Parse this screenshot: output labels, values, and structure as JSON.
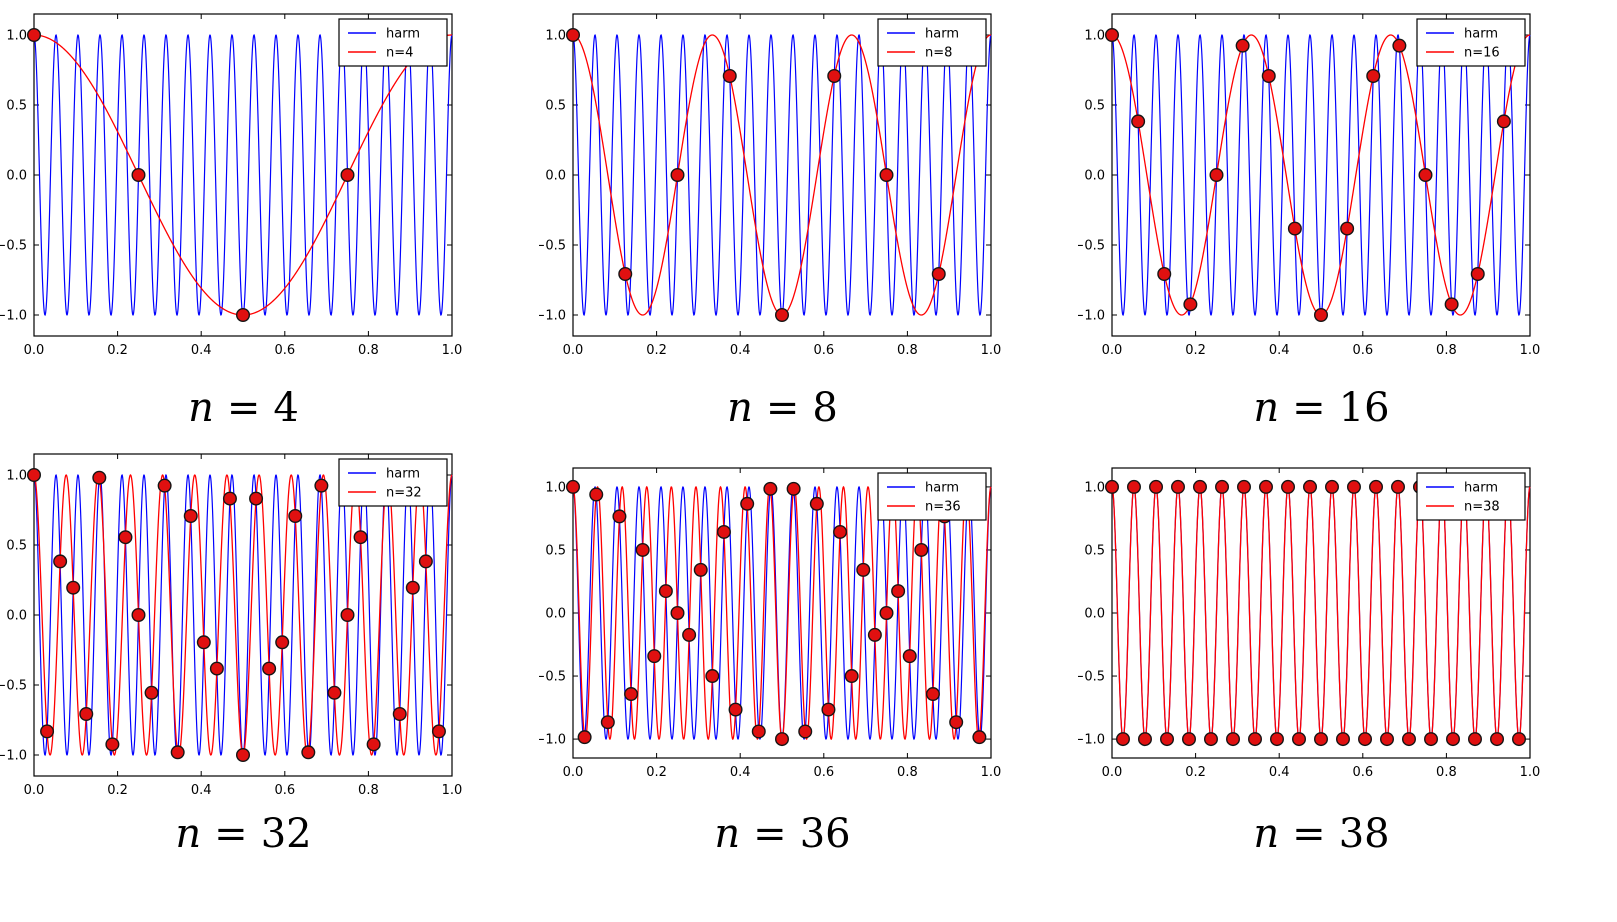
{
  "figure": {
    "description": "Aliasing demonstration: harmonic cos(2*pi*19*x) sampled with n points; red curve is the aliased reconstruction",
    "background": "#ffffff",
    "rows": 2,
    "cols": 3
  },
  "colors": {
    "harmonic": "#0000ff",
    "alias": "#ff0000",
    "marker_fill": "#e01010",
    "marker_edge": "#151515",
    "frame": "#000000",
    "plot_background": "#ffffff",
    "legend_background": "#ffffff"
  },
  "axes": {
    "xlim": [
      0,
      1
    ],
    "ylim": [
      -1.15,
      1.15
    ],
    "x_tick_values": [
      0.0,
      0.2,
      0.4,
      0.6,
      0.8,
      1.0
    ],
    "x_tick_labels": [
      "0.0",
      "0.2",
      "0.4",
      "0.6",
      "0.8",
      "1.0"
    ],
    "y_tick_values": [
      1.0,
      0.5,
      0.0,
      -0.5,
      -1.0
    ],
    "y_tick_labels": [
      "1.0",
      "0.5",
      "0.0",
      "−0.5",
      "−1.0"
    ],
    "grid": false,
    "tick_direction": "in",
    "legend_position": "upper right"
  },
  "chart_data": [
    {
      "type": "line",
      "caption": {
        "var": "n",
        "eq": "=",
        "value": "4"
      },
      "n_samples": 4,
      "legend": [
        "harm",
        "n=4"
      ],
      "series": [
        {
          "name": "harm",
          "freq": 19,
          "formula": "cos(2*pi*19*x)",
          "color": "#0000ff"
        },
        {
          "name": "n=4",
          "freq": 1,
          "formula": "cos(2*pi*1*x)",
          "color": "#ff0000"
        }
      ],
      "samples": [
        [
          0,
          1
        ],
        [
          0.25,
          0
        ],
        [
          0.5,
          -1
        ],
        [
          0.75,
          0
        ]
      ]
    },
    {
      "type": "line",
      "caption": {
        "var": "n",
        "eq": "=",
        "value": "8"
      },
      "n_samples": 8,
      "legend": [
        "harm",
        "n=8"
      ],
      "series": [
        {
          "name": "harm",
          "freq": 19,
          "formula": "cos(2*pi*19*x)",
          "color": "#0000ff"
        },
        {
          "name": "n=8",
          "freq": 3,
          "formula": "cos(2*pi*3*x)",
          "color": "#ff0000"
        }
      ],
      "samples": [
        [
          0,
          1
        ],
        [
          0.125,
          -0.7071
        ],
        [
          0.25,
          0
        ],
        [
          0.375,
          0.7071
        ],
        [
          0.5,
          -1
        ],
        [
          0.625,
          0.7071
        ],
        [
          0.75,
          0
        ],
        [
          0.875,
          -0.7071
        ]
      ]
    },
    {
      "type": "line",
      "caption": {
        "var": "n",
        "eq": "=",
        "value": "16"
      },
      "n_samples": 16,
      "legend": [
        "harm",
        "n=16"
      ],
      "series": [
        {
          "name": "harm",
          "freq": 19,
          "formula": "cos(2*pi*19*x)",
          "color": "#0000ff"
        },
        {
          "name": "n=16",
          "freq": 3,
          "formula": "cos(2*pi*3*x)",
          "color": "#ff0000"
        }
      ],
      "samples": [
        [
          0,
          1
        ],
        [
          0.0625,
          0.3827
        ],
        [
          0.125,
          -0.7071
        ],
        [
          0.1875,
          -0.9239
        ],
        [
          0.25,
          0
        ],
        [
          0.3125,
          0.9239
        ],
        [
          0.375,
          0.7071
        ],
        [
          0.4375,
          -0.3827
        ],
        [
          0.5,
          -1
        ],
        [
          0.5625,
          -0.3827
        ],
        [
          0.625,
          0.7071
        ],
        [
          0.6875,
          0.9239
        ],
        [
          0.75,
          0
        ],
        [
          0.8125,
          -0.9239
        ],
        [
          0.875,
          -0.7071
        ],
        [
          0.9375,
          0.3827
        ]
      ]
    },
    {
      "type": "line",
      "caption": {
        "var": "n",
        "eq": "=",
        "value": "32"
      },
      "n_samples": 32,
      "legend": [
        "harm",
        "n=32"
      ],
      "series": [
        {
          "name": "harm",
          "freq": 19,
          "formula": "cos(2*pi*19*x)",
          "color": "#0000ff"
        },
        {
          "name": "n=32",
          "freq": 13,
          "formula": "cos(2*pi*13*x)",
          "color": "#ff0000"
        }
      ],
      "samples": [
        [
          0,
          1
        ],
        [
          0.03125,
          -0.8315
        ],
        [
          0.0625,
          0.3827
        ],
        [
          0.09375,
          0.1951
        ],
        [
          0.125,
          -0.7071
        ],
        [
          0.15625,
          0.9808
        ],
        [
          0.1875,
          -0.9239
        ],
        [
          0.21875,
          0.5556
        ],
        [
          0.25,
          0
        ],
        [
          0.28125,
          -0.5556
        ],
        [
          0.3125,
          0.9239
        ],
        [
          0.34375,
          -0.9808
        ],
        [
          0.375,
          0.7071
        ],
        [
          0.40625,
          -0.1951
        ],
        [
          0.4375,
          -0.3827
        ],
        [
          0.46875,
          0.8315
        ],
        [
          0.5,
          -1
        ],
        [
          0.53125,
          0.8315
        ],
        [
          0.5625,
          -0.3827
        ],
        [
          0.59375,
          -0.1951
        ],
        [
          0.625,
          0.7071
        ],
        [
          0.65625,
          -0.9808
        ],
        [
          0.6875,
          0.9239
        ],
        [
          0.71875,
          -0.5556
        ],
        [
          0.75,
          0
        ],
        [
          0.78125,
          0.5556
        ],
        [
          0.8125,
          -0.9239
        ],
        [
          0.84375,
          0.9808
        ],
        [
          0.875,
          -0.7071
        ],
        [
          0.90625,
          0.1951
        ],
        [
          0.9375,
          0.3827
        ],
        [
          0.96875,
          -0.8315
        ]
      ]
    },
    {
      "type": "line",
      "caption": {
        "var": "n",
        "eq": "=",
        "value": "36"
      },
      "n_samples": 36,
      "legend": [
        "harm",
        "n=36"
      ],
      "series": [
        {
          "name": "harm",
          "freq": 19,
          "formula": "cos(2*pi*19*x)",
          "color": "#0000ff"
        },
        {
          "name": "n=36",
          "freq": 17,
          "formula": "cos(2*pi*17*x)",
          "color": "#ff0000"
        }
      ],
      "samples": [
        [
          0,
          1
        ],
        [
          0.0278,
          -0.9848
        ],
        [
          0.0556,
          0.9397
        ],
        [
          0.0833,
          -0.866
        ],
        [
          0.1111,
          0.766
        ],
        [
          0.1389,
          -0.6428
        ],
        [
          0.1667,
          0.5
        ],
        [
          0.1944,
          -0.342
        ],
        [
          0.2222,
          0.1736
        ],
        [
          0.25,
          0
        ],
        [
          0.2778,
          -0.1736
        ],
        [
          0.3056,
          0.342
        ],
        [
          0.3333,
          -0.5
        ],
        [
          0.3611,
          0.6428
        ],
        [
          0.3889,
          -0.766
        ],
        [
          0.4167,
          0.866
        ],
        [
          0.4444,
          -0.9397
        ],
        [
          0.4722,
          0.9848
        ],
        [
          0.5,
          -1
        ],
        [
          0.5278,
          0.9848
        ],
        [
          0.5556,
          -0.9397
        ],
        [
          0.5833,
          0.866
        ],
        [
          0.6111,
          -0.766
        ],
        [
          0.6389,
          0.6428
        ],
        [
          0.6667,
          -0.5
        ],
        [
          0.6944,
          0.342
        ],
        [
          0.7222,
          -0.1736
        ],
        [
          0.75,
          0
        ],
        [
          0.7778,
          0.1736
        ],
        [
          0.8056,
          -0.342
        ],
        [
          0.8333,
          0.5
        ],
        [
          0.8611,
          -0.6428
        ],
        [
          0.8889,
          0.766
        ],
        [
          0.9167,
          -0.866
        ],
        [
          0.9444,
          0.9397
        ],
        [
          0.9722,
          -0.9848
        ]
      ]
    },
    {
      "type": "line",
      "caption": {
        "var": "n",
        "eq": "=",
        "value": "38"
      },
      "n_samples": 38,
      "legend": [
        "harm",
        "n=38"
      ],
      "series": [
        {
          "name": "harm",
          "freq": 19,
          "formula": "cos(2*pi*19*x)",
          "color": "#0000ff"
        },
        {
          "name": "n=38",
          "freq": 19,
          "formula": "cos(2*pi*19*x)",
          "color": "#ff0000"
        }
      ],
      "samples": [
        [
          0,
          1
        ],
        [
          0.0263,
          -1
        ],
        [
          0.0526,
          1
        ],
        [
          0.0789,
          -1
        ],
        [
          0.1053,
          1
        ],
        [
          0.1316,
          -1
        ],
        [
          0.1579,
          1
        ],
        [
          0.1842,
          -1
        ],
        [
          0.2105,
          1
        ],
        [
          0.2368,
          -1
        ],
        [
          0.2632,
          1
        ],
        [
          0.2895,
          -1
        ],
        [
          0.3158,
          1
        ],
        [
          0.3421,
          -1
        ],
        [
          0.3684,
          1
        ],
        [
          0.3947,
          -1
        ],
        [
          0.4211,
          1
        ],
        [
          0.4474,
          -1
        ],
        [
          0.4737,
          1
        ],
        [
          0.5,
          -1
        ],
        [
          0.5263,
          1
        ],
        [
          0.5526,
          -1
        ],
        [
          0.5789,
          1
        ],
        [
          0.6053,
          -1
        ],
        [
          0.6316,
          1
        ],
        [
          0.6579,
          -1
        ],
        [
          0.6842,
          1
        ],
        [
          0.7105,
          -1
        ],
        [
          0.7368,
          1
        ],
        [
          0.7632,
          -1
        ],
        [
          0.7895,
          1
        ],
        [
          0.8158,
          -1
        ],
        [
          0.8421,
          1
        ],
        [
          0.8684,
          -1
        ],
        [
          0.8947,
          1
        ],
        [
          0.9211,
          -1
        ],
        [
          0.9474,
          1
        ],
        [
          0.9737,
          -1
        ]
      ]
    }
  ]
}
